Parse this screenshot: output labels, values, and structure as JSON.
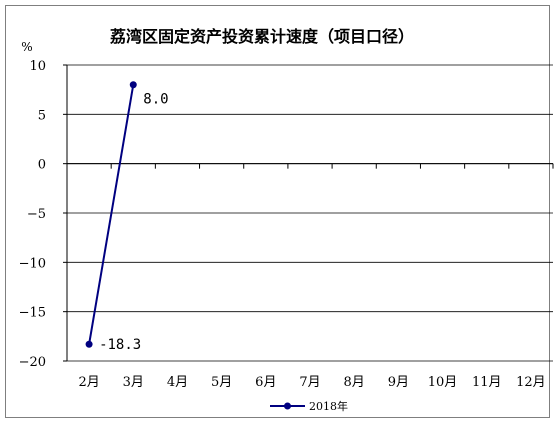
{
  "chart_data": {
    "type": "line",
    "title": "荔湾区固定资产投资累计速度（项目口径）",
    "unit": "%",
    "categories": [
      "2月",
      "3月",
      "4月",
      "5月",
      "6月",
      "7月",
      "8月",
      "9月",
      "10月",
      "11月",
      "12月"
    ],
    "series": [
      {
        "name": "2018年",
        "values": [
          -18.3,
          8.0,
          null,
          null,
          null,
          null,
          null,
          null,
          null,
          null,
          null
        ],
        "color": "#000080"
      }
    ],
    "data_labels": [
      "-18.3",
      "8.0"
    ],
    "ylim": [
      -20,
      10
    ],
    "yticks": [
      10,
      5,
      0,
      -5,
      -10,
      -15,
      -20
    ],
    "ytick_labels": [
      "10",
      "5",
      "0",
      "−5",
      "−10",
      "−15",
      "−20"
    ],
    "grid": true,
    "legend_position": "bottom"
  }
}
